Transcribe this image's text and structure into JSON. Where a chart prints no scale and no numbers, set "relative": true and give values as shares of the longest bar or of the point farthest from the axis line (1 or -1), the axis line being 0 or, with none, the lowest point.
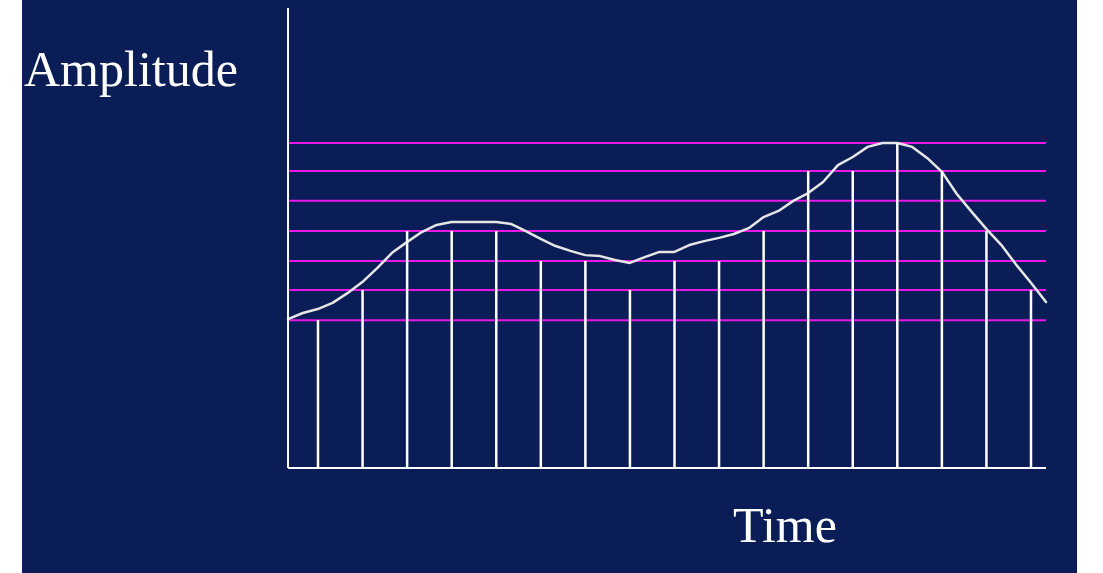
{
  "chart_data": [
    {
      "type": "line",
      "relative": true,
      "ylabel": "Amplitude",
      "xlabel": "Time",
      "categories": [
        null,
        null,
        null,
        null,
        null,
        null,
        null,
        null,
        null,
        null,
        null,
        null,
        null,
        null,
        null,
        null,
        null,
        null,
        null,
        null,
        null,
        null,
        null,
        null,
        null,
        null,
        null,
        null,
        null,
        null,
        null,
        null,
        null,
        null,
        null,
        null,
        null,
        null,
        null,
        null,
        null,
        null,
        null,
        null,
        null,
        null,
        null,
        null,
        null,
        null,
        null,
        null
      ],
      "series": [
        {
          "color": "#e6e6e6",
          "values": [
            0.458,
            0.477,
            0.489,
            0.508,
            0.538,
            0.572,
            0.615,
            0.662,
            0.695,
            0.726,
            0.748,
            0.757,
            0.757,
            0.757,
            0.757,
            0.751,
            0.729,
            0.705,
            0.683,
            0.668,
            0.655,
            0.652,
            0.64,
            0.631,
            0.649,
            0.665,
            0.665,
            0.686,
            0.698,
            0.708,
            0.72,
            0.738,
            0.772,
            0.791,
            0.822,
            0.846,
            0.88,
            0.932,
            0.957,
            0.988,
            1,
            1,
            0.988,
            0.954,
            0.911,
            0.843,
            0.788,
            0.735,
            0.686,
            0.625,
            0.569,
            0.511
          ]
        }
      ],
      "ref_lines": [
        {
          "axis": "y",
          "value": 0.455,
          "color": "#e619e6"
        },
        {
          "axis": "y",
          "value": 0.548,
          "color": "#e619e6"
        },
        {
          "axis": "y",
          "value": 0.637,
          "color": "#e619e6"
        },
        {
          "axis": "y",
          "value": 0.729,
          "color": "#e619e6"
        },
        {
          "axis": "y",
          "value": 0.822,
          "color": "#e619e6"
        },
        {
          "axis": "y",
          "value": 0.914,
          "color": "#e619e6"
        },
        {
          "axis": "y",
          "value": 1,
          "color": "#e619e6"
        }
      ]
    },
    {
      "type": "bar",
      "relative": true,
      "categories": [
        null,
        null,
        null,
        null,
        null,
        null,
        null,
        null,
        null,
        null,
        null,
        null,
        null,
        null,
        null,
        null,
        null
      ],
      "series": [
        {
          "color": "#ffffff",
          "values": [
            0.455,
            0.548,
            0.729,
            0.729,
            0.729,
            0.637,
            0.637,
            0.548,
            0.637,
            0.637,
            0.729,
            0.914,
            0.914,
            1,
            0.914,
            0.729,
            0.548
          ]
        }
      ]
    }
  ]
}
